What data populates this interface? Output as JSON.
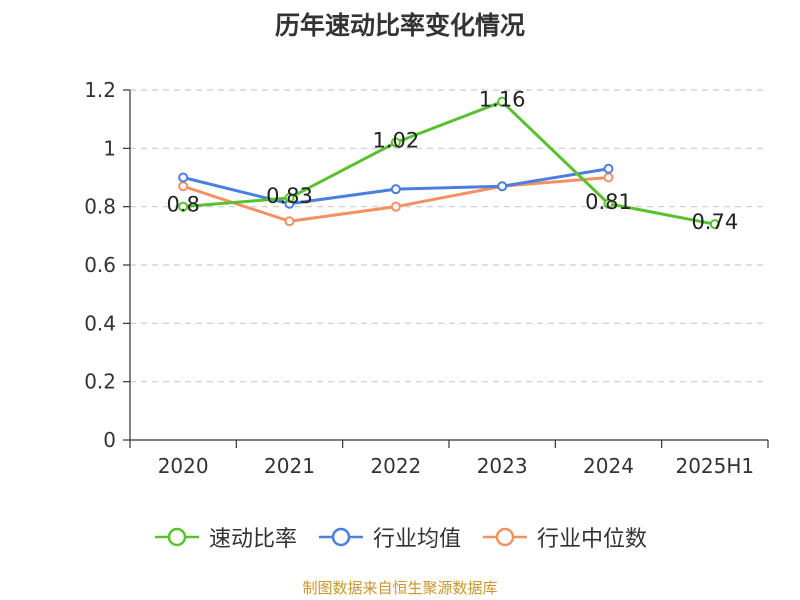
{
  "chart_data": {
    "type": "line",
    "title": "历年速动比率变化情况",
    "categories": [
      "2020",
      "2021",
      "2022",
      "2023",
      "2024",
      "2025H1"
    ],
    "y_ticks": [
      "0",
      "0.2",
      "0.4",
      "0.6",
      "0.8",
      "1",
      "1.2"
    ],
    "ylim": [
      0,
      1.2
    ],
    "grid": true,
    "legend_position": "bottom",
    "series": [
      {
        "name": "速动比率",
        "color": "#5ac12e",
        "values": [
          0.8,
          0.83,
          1.02,
          1.16,
          0.81,
          0.74
        ],
        "labels": [
          "0.8",
          "0.83",
          "1.02",
          "1.16",
          "0.81",
          "0.74"
        ],
        "show_labels": true
      },
      {
        "name": "行业均值",
        "color": "#4a7fe0",
        "values": [
          0.9,
          0.81,
          0.86,
          0.87,
          0.93,
          null
        ],
        "show_labels": false
      },
      {
        "name": "行业中位数",
        "color": "#f59062",
        "values": [
          0.87,
          0.75,
          0.8,
          0.87,
          0.9,
          null
        ],
        "show_labels": false
      }
    ]
  },
  "source": "制图数据来自恒生聚源数据库"
}
